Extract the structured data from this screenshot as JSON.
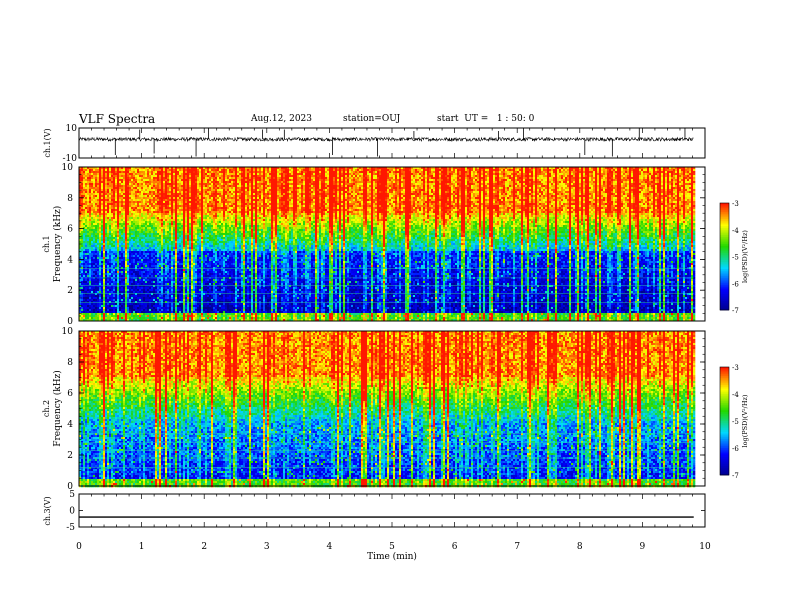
{
  "header": {
    "title": "VLF Spectra",
    "date": "Aug.12, 2023",
    "station": "station=OUJ",
    "start_ut": "start  UT =   1 : 50: 0"
  },
  "chart_data": [
    {
      "type": "line",
      "name": "ch1-waveform",
      "ylabel": "ch.1(V)",
      "ylim": [
        -10,
        10
      ],
      "ytick_labels": [
        "10",
        "-10"
      ],
      "xlim": [
        0,
        10
      ],
      "x_end": 9.82,
      "baseline_y": 2.5,
      "noise_amplitude": 1.2,
      "spikes": [
        {
          "x": 0.58,
          "y": -8
        },
        {
          "x": 0.97,
          "y": 9
        },
        {
          "x": 1.2,
          "y": -7
        },
        {
          "x": 1.87,
          "y": -9
        },
        {
          "x": 2.07,
          "y": 10
        },
        {
          "x": 2.93,
          "y": 9
        },
        {
          "x": 3.28,
          "y": 9
        },
        {
          "x": 4.05,
          "y": -8
        },
        {
          "x": 4.77,
          "y": -9
        },
        {
          "x": 5.35,
          "y": 8
        },
        {
          "x": 6.7,
          "y": 8
        },
        {
          "x": 7.1,
          "y": 10
        },
        {
          "x": 8.08,
          "y": -8
        },
        {
          "x": 8.52,
          "y": -9
        },
        {
          "x": 8.95,
          "y": 10
        },
        {
          "x": 9.68,
          "y": 10
        }
      ]
    },
    {
      "type": "heatmap",
      "name": "ch1-spectrogram",
      "ylabel": "ch.1\nFrequency (kHz)",
      "ylim": [
        0,
        10
      ],
      "ytick_labels": [
        "0",
        "2",
        "4",
        "6",
        "8",
        "10"
      ],
      "xlim": [
        0,
        10
      ],
      "x_end": 9.82,
      "colorbar": {
        "label": "log(PSD)(V²/Hz)",
        "range": [
          -7,
          -3
        ],
        "tick_labels": [
          "-3",
          "-4",
          "-5",
          "-6",
          "-7"
        ]
      },
      "noise_floor_band_khz": [
        0.5,
        4.5
      ],
      "min_log_psd_in_band": -6.8,
      "transition_khz": [
        4.5,
        7
      ],
      "upper_log_psd": -3.3
    },
    {
      "type": "heatmap",
      "name": "ch2-spectrogram",
      "ylabel": "ch.2\nFrequency (kHz)",
      "ylim": [
        0,
        10
      ],
      "ytick_labels": [
        "0",
        "2",
        "4",
        "6",
        "8",
        "10"
      ],
      "xlim": [
        0,
        10
      ],
      "x_end": 9.82,
      "colorbar": {
        "label": "log(PSD)(V²/Hz)",
        "range": [
          -7,
          -3
        ],
        "tick_labels": [
          "-3",
          "-4",
          "-5",
          "-6",
          "-7"
        ]
      },
      "noise_floor_band_khz": [
        0.5,
        4
      ],
      "min_log_psd_in_band": -6.2,
      "transition_khz": [
        4,
        7
      ],
      "upper_log_psd": -3.3
    },
    {
      "type": "line",
      "name": "ch3-waveform",
      "ylabel": "ch.3(V)",
      "ylim": [
        -5,
        5
      ],
      "ytick_labels": [
        "5",
        "0",
        "-5"
      ],
      "xlim": [
        0,
        10
      ],
      "x_end": 9.82,
      "values": [
        -2,
        -2
      ]
    }
  ],
  "xaxis": {
    "label": "Time (min)",
    "tick_labels": [
      "0",
      "1",
      "2",
      "3",
      "4",
      "5",
      "6",
      "7",
      "8",
      "9",
      "10"
    ]
  },
  "colors": {
    "axes": "#000000",
    "colormap": [
      "#00008c",
      "#0000ff",
      "#00d8ff",
      "#22d800",
      "#ffff00",
      "#ff1800"
    ]
  }
}
